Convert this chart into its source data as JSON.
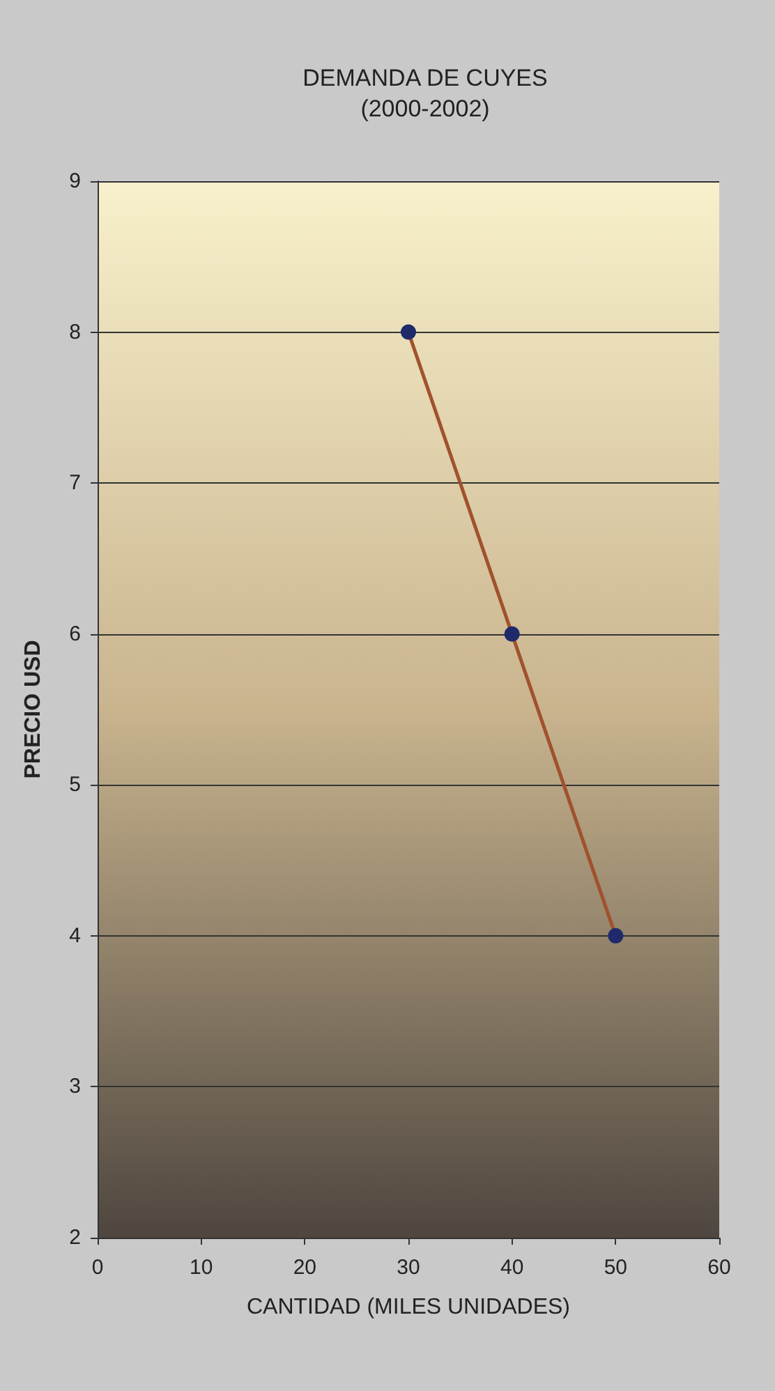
{
  "chart_data": {
    "type": "line",
    "title": "DEMANDA DE CUYES\n(2000-2002)",
    "xlabel": "CANTIDAD (MILES UNIDADES)",
    "ylabel": "PRECIO USD",
    "x": [
      30,
      40,
      50
    ],
    "series": [
      {
        "color": "#a0522d",
        "values": [
          8,
          6,
          4
        ]
      }
    ],
    "xlim": [
      0,
      60
    ],
    "xticks": [
      0,
      10,
      20,
      30,
      40,
      50,
      60
    ],
    "ylim": [
      2,
      9
    ],
    "yticks": [
      2,
      3,
      4,
      5,
      6,
      7,
      8,
      9
    ],
    "grid": "y",
    "marker": "circle",
    "line_style": "solid"
  }
}
